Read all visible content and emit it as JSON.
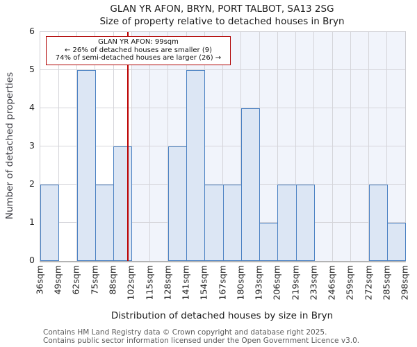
{
  "page": {
    "title": "GLAN YR AFON, BRYN, PORT TALBOT, SA13 2SG",
    "subtitle": "Size of property relative to detached houses in Bryn"
  },
  "annotation": {
    "line1": "GLAN YR AFON: 99sqm",
    "line2": "← 26% of detached houses are smaller (9)",
    "line3": "74% of semi-detached houses are larger (26) →"
  },
  "footer": {
    "line1": "Contains HM Land Registry data © Crown copyright and database right 2025.",
    "line2": "Contains public sector information licensed under the Open Government Licence v3.0."
  },
  "chart_data": {
    "type": "bar",
    "title": "GLAN YR AFON, BRYN, PORT TALBOT, SA13 2SG — Size of property relative to detached houses in Bryn",
    "categories": [
      "36sqm",
      "49sqm",
      "62sqm",
      "75sqm",
      "88sqm",
      "102sqm",
      "115sqm",
      "128sqm",
      "141sqm",
      "154sqm",
      "167sqm",
      "180sqm",
      "193sqm",
      "206sqm",
      "219sqm",
      "233sqm",
      "246sqm",
      "259sqm",
      "272sqm",
      "285sqm",
      "298sqm"
    ],
    "values": [
      2,
      0,
      5,
      2,
      3,
      0,
      0,
      3,
      5,
      2,
      2,
      4,
      1,
      2,
      2,
      0,
      0,
      0,
      2,
      1
    ],
    "xlabel": "Distribution of detached houses by size in Bryn",
    "ylabel": "Number of detached properties",
    "ylim": [
      0,
      6
    ],
    "yticks": [
      0,
      1,
      2,
      3,
      4,
      5,
      6
    ],
    "grid": true,
    "legend": "none",
    "marker": {
      "name": "GLAN YR AFON",
      "size_sqm": 99
    },
    "shaded_from_label": "102sqm",
    "colors": {
      "bar_fill": "#dce6f4",
      "bar_edge": "#4c82c3",
      "marker_line": "#bb0000",
      "annotation_border": "#b00000",
      "shaded_region": "#f1f4fb",
      "grid_line": "#d5d5da"
    }
  }
}
